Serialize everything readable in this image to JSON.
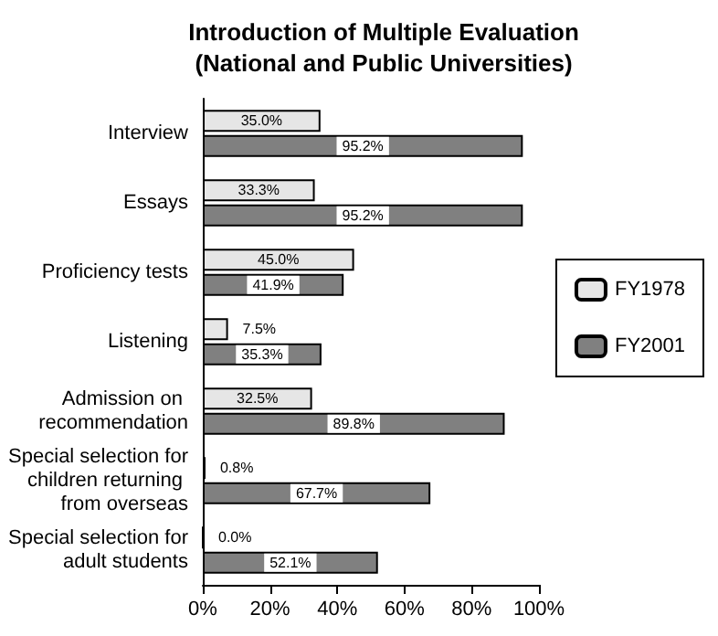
{
  "chart_data": {
    "type": "bar",
    "orientation": "horizontal",
    "title": "Introduction of Multiple Evaluation\n(National and Public Universities)",
    "categories": [
      "Interview",
      "Essays",
      "Proficiency tests",
      "Listening",
      "Admission on recommendation",
      "Special selection for children returning from overseas",
      "Special selection for adult students"
    ],
    "series": [
      {
        "name": "FY1978",
        "color": "#e6e6e6",
        "values": [
          35.0,
          33.3,
          45.0,
          7.5,
          32.5,
          0.8,
          0.0
        ],
        "value_labels": [
          "35.0%",
          "33.3%",
          "45.0%",
          "7.5%",
          "32.5%",
          "0.8%",
          "0.0%"
        ]
      },
      {
        "name": "FY2001",
        "color": "#808080",
        "values": [
          95.2,
          95.2,
          41.9,
          35.3,
          89.8,
          67.7,
          52.1
        ],
        "value_labels": [
          "95.2%",
          "95.2%",
          "41.9%",
          "35.3%",
          "89.8%",
          "67.7%",
          "52.1%"
        ]
      }
    ],
    "xlim": [
      0,
      100
    ],
    "xticks": [
      {
        "value": 0,
        "label": "0%"
      },
      {
        "value": 20,
        "label": "20%"
      },
      {
        "value": 40,
        "label": "40%"
      },
      {
        "value": 60,
        "label": "60%"
      },
      {
        "value": 80,
        "label": "80%"
      },
      {
        "value": 100,
        "label": "100%"
      }
    ],
    "legend": "right",
    "grid": false
  }
}
